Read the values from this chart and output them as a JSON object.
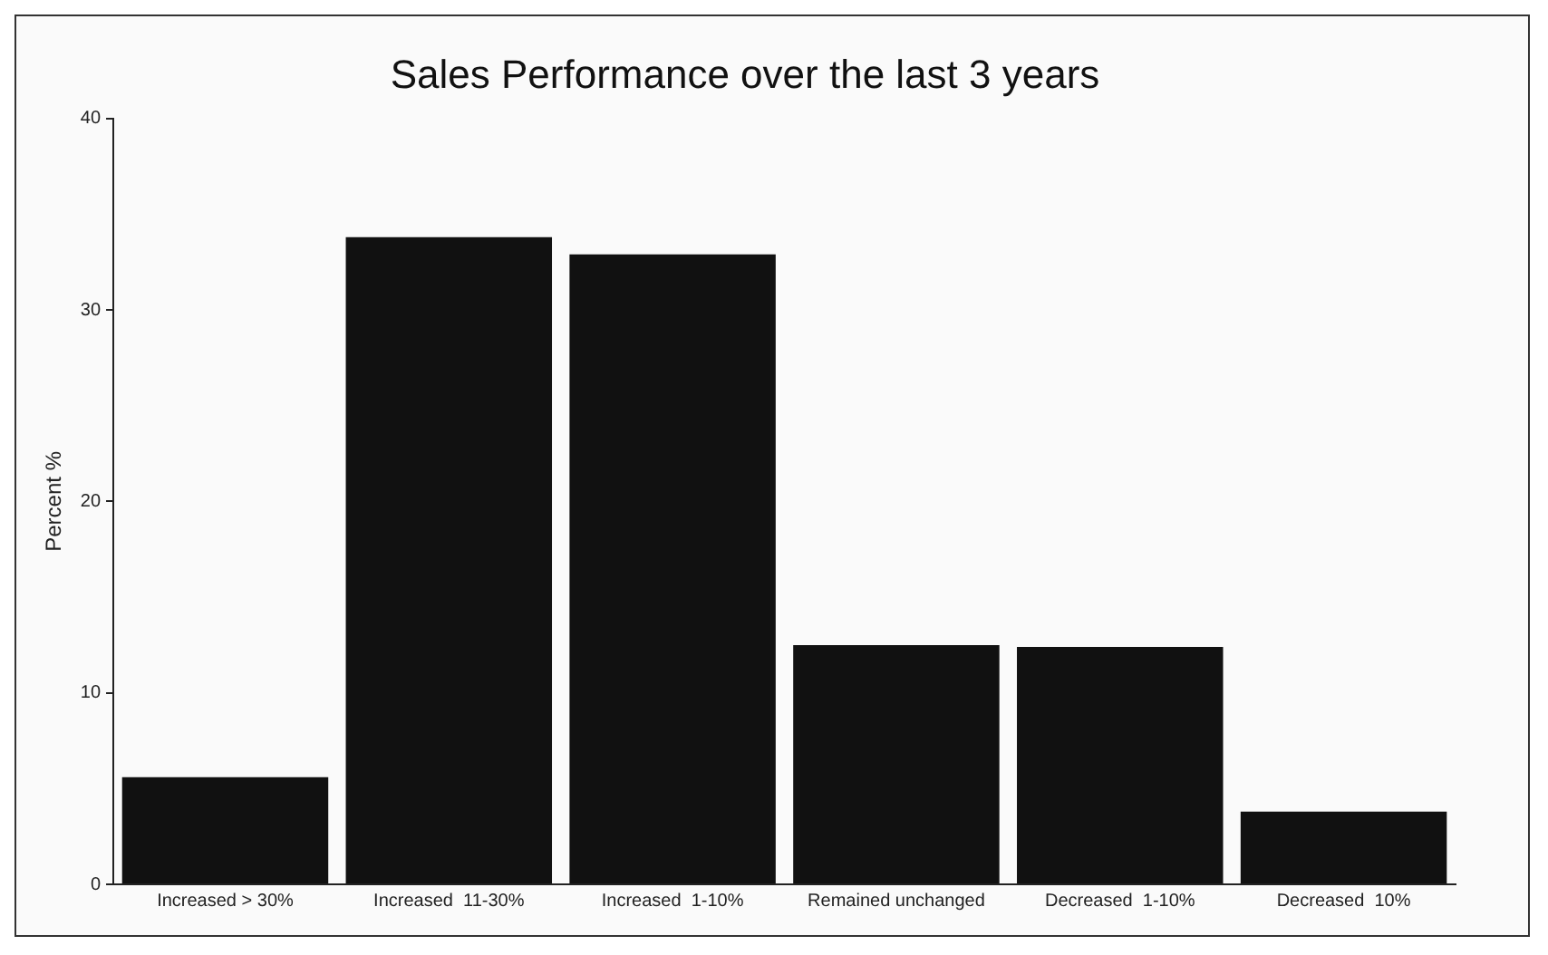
{
  "chart_data": {
    "type": "bar",
    "title": "Sales Performance over the last 3 years",
    "ylabel": "Percent %",
    "categories": [
      "Increased > 30%",
      "Increased  11-30%",
      "Increased  1-10%",
      "Remained unchanged",
      "Decreased  1-10%",
      "Decreased  10%"
    ],
    "values": [
      5.6,
      33.8,
      32.9,
      12.5,
      12.4,
      3.8
    ],
    "color": "#111111",
    "ylim": [
      0,
      40
    ],
    "yticks": [
      0,
      10,
      20,
      30,
      40
    ],
    "grid": false,
    "legend": false
  }
}
